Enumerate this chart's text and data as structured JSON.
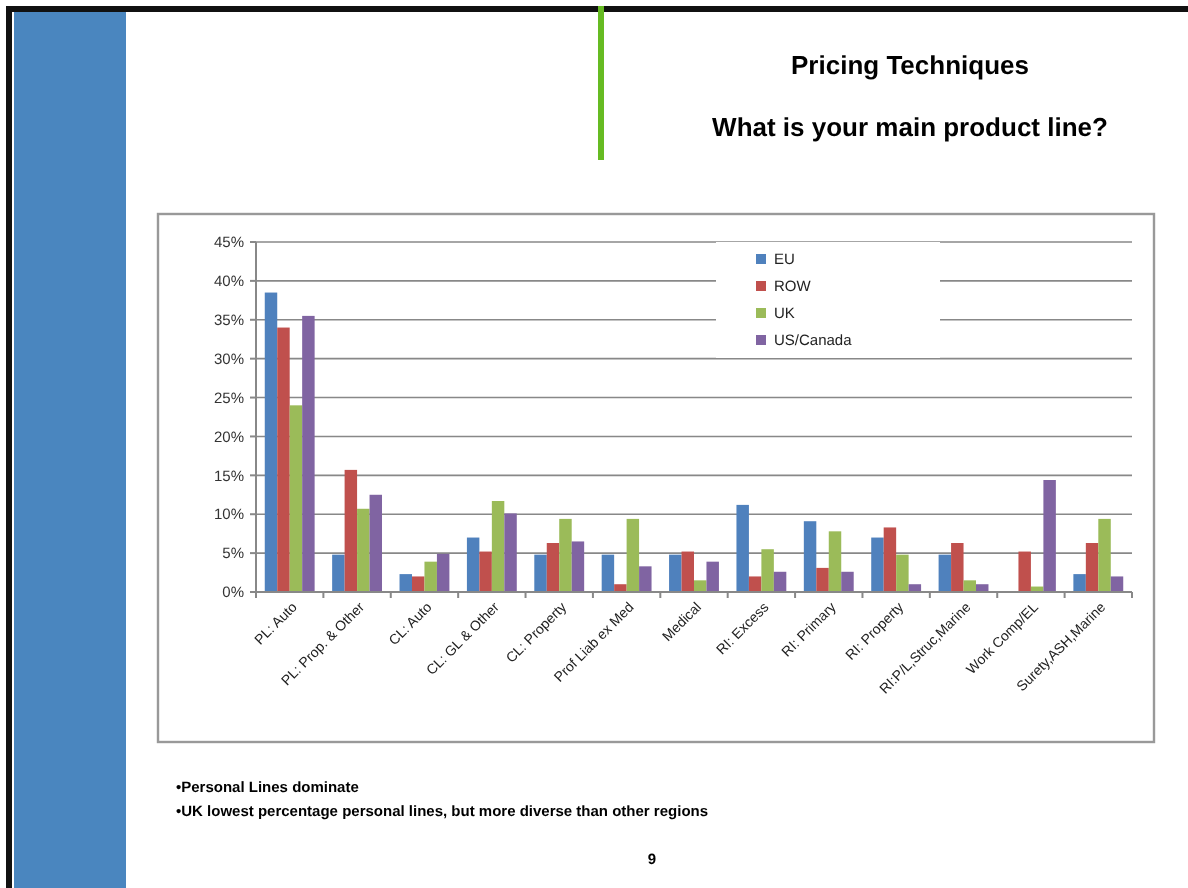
{
  "chart_data": {
    "type": "bar",
    "title": "Pricing Techniques",
    "subtitle": "What is your main product line?",
    "categories": [
      "PL: Auto",
      "PL: Prop. & Other",
      "CL: Auto",
      "CL: GL & Other",
      "CL: Property",
      "Prof Liab ex Med",
      "Medical",
      "RI: Excess",
      "RI: Primary",
      "RI: Property",
      "RI:P/L,Struc,Marine",
      "Work Comp/EL",
      "Surety,ASH,Marine"
    ],
    "series": [
      {
        "name": "EU",
        "color": "#4f81bd",
        "values": [
          38.5,
          4.8,
          2.3,
          7,
          4.8,
          4.8,
          4.8,
          11.2,
          9.1,
          7,
          4.8,
          0,
          2.3
        ]
      },
      {
        "name": "ROW",
        "color": "#c0504d",
        "values": [
          34,
          15.7,
          2,
          5.2,
          6.3,
          1,
          5.2,
          2,
          3.1,
          8.3,
          6.3,
          5.2,
          6.3
        ]
      },
      {
        "name": "UK",
        "color": "#9bbb59",
        "values": [
          24,
          10.7,
          3.9,
          11.7,
          9.4,
          9.4,
          1.5,
          5.5,
          7.8,
          4.8,
          1.5,
          0.7,
          9.4
        ]
      },
      {
        "name": "US/Canada",
        "color": "#8064a2",
        "values": [
          35.5,
          12.5,
          4.9,
          10.1,
          6.5,
          3.3,
          3.9,
          2.6,
          2.6,
          1,
          1,
          14.4,
          2
        ]
      }
    ],
    "ylim": [
      0,
      45
    ],
    "yticks": [
      {
        "value": 0,
        "label": "0%"
      },
      {
        "value": 5,
        "label": "5%"
      },
      {
        "value": 10,
        "label": "10%"
      },
      {
        "value": 15,
        "label": "15%"
      },
      {
        "value": 20,
        "label": "20%"
      },
      {
        "value": 25,
        "label": "25%"
      },
      {
        "value": 30,
        "label": "30%"
      },
      {
        "value": 35,
        "label": "35%"
      },
      {
        "value": 40,
        "label": "40%"
      },
      {
        "value": 45,
        "label": "45%"
      }
    ],
    "grid": "y",
    "legend": "top right",
    "annotations": [
      "•Personal Lines dominate",
      "•UK lowest percentage personal lines, but more diverse than other regions",
      "9"
    ]
  }
}
